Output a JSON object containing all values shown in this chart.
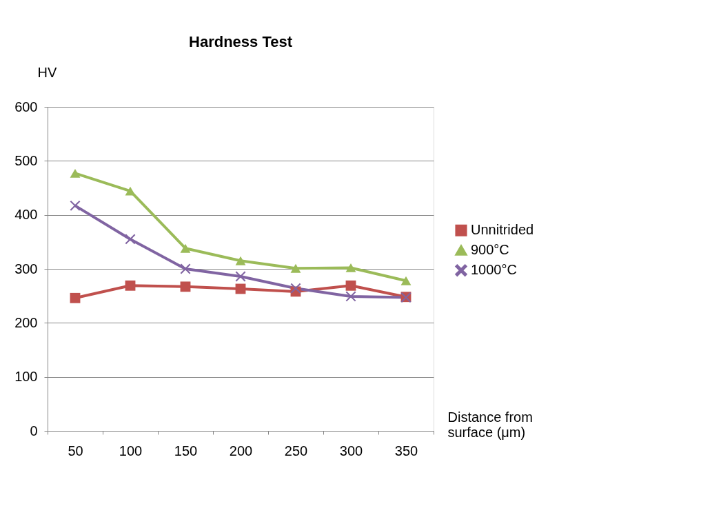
{
  "chart_data": {
    "type": "line",
    "title": "Hardness Test",
    "xlabel": "Distance from surface (μm)",
    "ylabel": "HV",
    "categories": [
      "50",
      "100",
      "150",
      "200",
      "250",
      "300",
      "350"
    ],
    "series": [
      {
        "name": "Unnitrided",
        "color": "#c0504d",
        "marker": "square",
        "values": [
          246,
          269,
          267,
          263,
          258,
          269,
          248
        ]
      },
      {
        "name": "900°C",
        "color": "#9bbb59",
        "marker": "triangle",
        "values": [
          477,
          444,
          338,
          315,
          301,
          302,
          278
        ]
      },
      {
        "name": "1000°C",
        "color": "#8064a2",
        "marker": "cross",
        "values": [
          417,
          355,
          300,
          286,
          264,
          249,
          247
        ]
      }
    ],
    "ylim": [
      0,
      600
    ],
    "yticks": [
      0,
      100,
      200,
      300,
      400,
      500,
      600
    ],
    "grid": "y",
    "legend": "right",
    "line_style": "solid"
  }
}
